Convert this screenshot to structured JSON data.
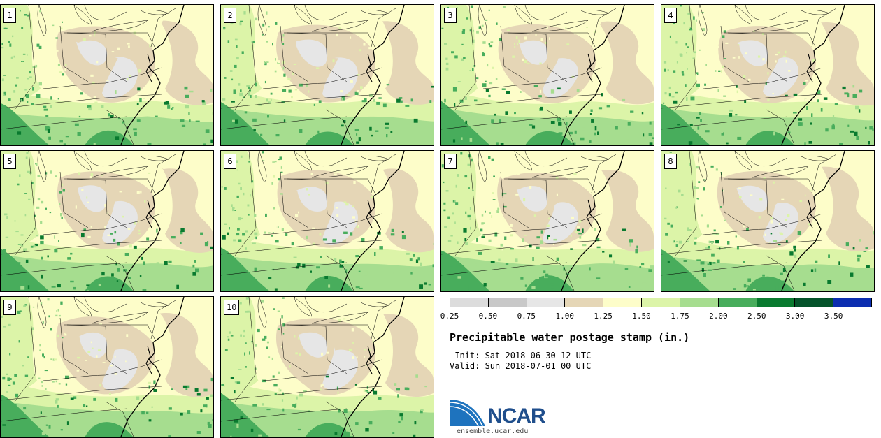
{
  "panels": [
    {
      "label": "1"
    },
    {
      "label": "2"
    },
    {
      "label": "3"
    },
    {
      "label": "4"
    },
    {
      "label": "5"
    },
    {
      "label": "6"
    },
    {
      "label": "7"
    },
    {
      "label": "8"
    },
    {
      "label": "9"
    },
    {
      "label": "10"
    }
  ],
  "legend": {
    "title": "Precipitable water postage stamp (in.)",
    "init": " Init: Sat 2018-06-30 12 UTC",
    "valid": "Valid: Sun 2018-07-01 00 UTC",
    "ticks": [
      "0.25",
      "0.50",
      "0.75",
      "1.00",
      "1.25",
      "1.50",
      "1.75",
      "2.00",
      "2.50",
      "3.00",
      "3.50"
    ],
    "colors": [
      "#dcdcdc",
      "#c8c8c8",
      "#e6e6e6",
      "#e5d6b6",
      "#fdfdc9",
      "#dcf4a8",
      "#a6dd8f",
      "#48ad5c",
      "#097a2f",
      "#04532a",
      "#0b2eb0"
    ]
  },
  "logo": {
    "name": "NCAR",
    "url": "ensemble.ucar.edu"
  }
}
